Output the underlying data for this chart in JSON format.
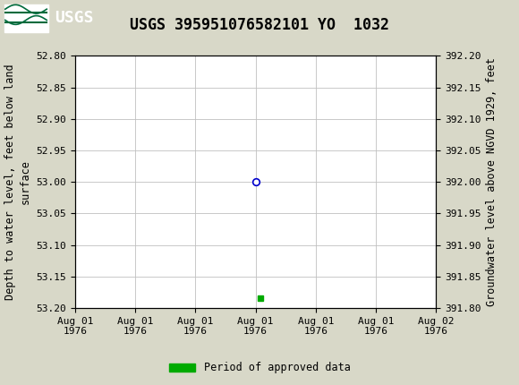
{
  "title": "USGS 395951076582101 YO  1032",
  "ylabel_left": "Depth to water level, feet below land\nsurface",
  "ylabel_right": "Groundwater level above NGVD 1929, feet",
  "ylim_left_top": 52.8,
  "ylim_left_bottom": 53.2,
  "ylim_right_bottom": 391.8,
  "ylim_right_top": 392.2,
  "yticks_left": [
    52.8,
    52.85,
    52.9,
    52.95,
    53.0,
    53.05,
    53.1,
    53.15,
    53.2
  ],
  "yticks_right": [
    391.8,
    391.85,
    391.9,
    391.95,
    392.0,
    392.05,
    392.1,
    392.15,
    392.2
  ],
  "data_point_x": 12.0,
  "data_point_y": 53.0,
  "approved_point_x": 12.3,
  "approved_point_y": 53.185,
  "header_color": "#006b3c",
  "bg_color": "#d8d8c8",
  "plot_bg_color": "#ffffff",
  "grid_color": "#c0c0c0",
  "circle_edge_color": "#0000cc",
  "approved_color": "#00aa00",
  "legend_label": "Period of approved data",
  "title_fontsize": 12,
  "axis_label_fontsize": 8.5,
  "tick_fontsize": 8,
  "x_ticks": [
    0,
    4,
    8,
    12,
    16,
    20,
    24
  ],
  "x_tick_labels": [
    "Aug 01\n1976",
    "Aug 01\n1976",
    "Aug 01\n1976",
    "Aug 01\n1976",
    "Aug 01\n1976",
    "Aug 01\n1976",
    "Aug 02\n1976"
  ]
}
